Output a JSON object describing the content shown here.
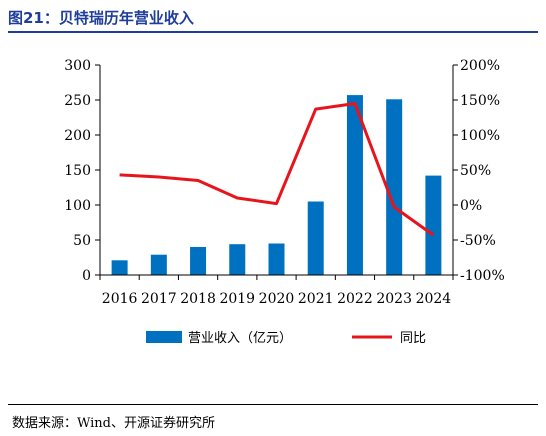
{
  "header": {
    "title": "图21：贝特瑞历年营业收入"
  },
  "source": "数据来源：Wind、开源证券研究所",
  "colors": {
    "bar": "#0070c0",
    "line": "#e8141c",
    "title": "#1f3d9a"
  },
  "chart_data": {
    "type": "bar",
    "categories": [
      "2016",
      "2017",
      "2018",
      "2019",
      "2020",
      "2021",
      "2022",
      "2023",
      "2024"
    ],
    "series": [
      {
        "name": "营业收入（亿元）",
        "type": "bar",
        "axis": "left",
        "values": [
          21,
          29,
          40,
          44,
          45,
          105,
          257,
          251,
          142
        ]
      },
      {
        "name": "同比",
        "type": "line",
        "axis": "right",
        "values": [
          43,
          40,
          35,
          10,
          2,
          137,
          145,
          -3,
          -43
        ]
      }
    ],
    "left_axis": {
      "min": 0,
      "max": 300,
      "ticks": [
        "0",
        "50",
        "100",
        "150",
        "200",
        "250",
        "300"
      ]
    },
    "right_axis": {
      "min": -100,
      "max": 200,
      "ticks": [
        "-100%",
        "-50%",
        "0%",
        "50%",
        "100%",
        "150%",
        "200%"
      ]
    },
    "legend_position": "bottom",
    "grid": false
  }
}
